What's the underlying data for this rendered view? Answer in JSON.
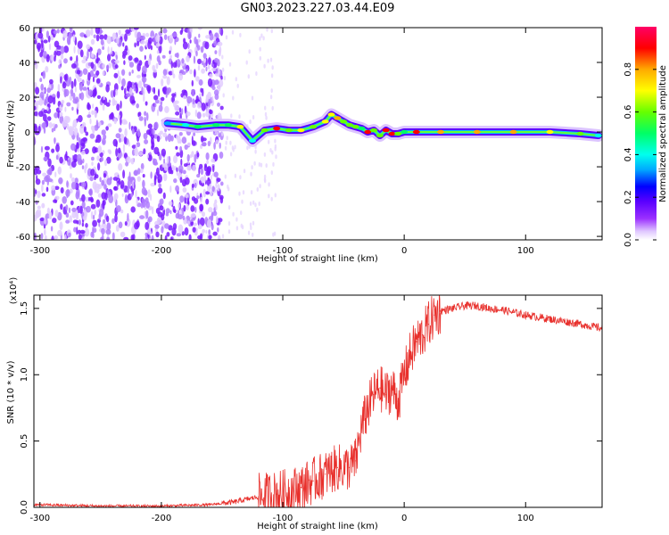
{
  "page_title": "GN03.2023.227.03.44.E09",
  "chart_data": [
    {
      "type": "heatmap",
      "title": "GN03.2023.227.03.44.E09",
      "xlabel": "Height of straight line (km)",
      "ylabel": "Frequency (Hz)",
      "xlim": [
        -305,
        163
      ],
      "ylim": [
        -62,
        60
      ],
      "xticks": [
        -300,
        -200,
        -100,
        0,
        100
      ],
      "yticks": [
        -60,
        -40,
        -20,
        0,
        20,
        40,
        60
      ],
      "grid": false,
      "colorbar": {
        "label": "Normalized spectral amplitude",
        "range": [
          0,
          1
        ],
        "ticks": [
          "0.0",
          "0.2",
          "0.4",
          "0.6",
          "0.8"
        ],
        "colormap": [
          "#ffffff",
          "#e0c8ff",
          "#9b30ff",
          "#5a00ff",
          "#0000ff",
          "#00aaff",
          "#00ffee",
          "#00ff66",
          "#66ff00",
          "#ffff00",
          "#ffaa00",
          "#ff0000",
          "#ff0066"
        ]
      },
      "noise_region_x": [
        -305,
        -150
      ],
      "ridge": {
        "x": [
          -195,
          -180,
          -170,
          -155,
          -145,
          -135,
          -125,
          -115,
          -105,
          -95,
          -85,
          -75,
          -65,
          -60,
          -55,
          -50,
          -45,
          -40,
          -35,
          -30,
          -25,
          -20,
          -15,
          -10,
          -5,
          0,
          10,
          30,
          60,
          90,
          120,
          145,
          160
        ],
        "y": [
          5,
          4,
          3,
          4,
          4,
          3,
          -5,
          1,
          2,
          1,
          1,
          3,
          6,
          10,
          8,
          6,
          4,
          3,
          2,
          0,
          1,
          -2,
          1,
          -1,
          -1,
          0,
          0,
          0,
          0,
          0,
          0,
          -1,
          -2
        ],
        "amplitude": [
          0.3,
          0.35,
          0.5,
          0.5,
          0.45,
          0.7,
          0.4,
          0.6,
          0.9,
          0.6,
          0.65,
          0.6,
          0.7,
          0.7,
          0.8,
          0.55,
          0.6,
          0.55,
          0.5,
          0.9,
          0.6,
          0.6,
          0.9,
          0.85,
          0.55,
          0.5,
          0.9,
          0.8,
          0.8,
          0.75,
          0.7,
          0.6,
          0.4
        ]
      }
    },
    {
      "type": "line",
      "xlabel": "Height of straight line (km)",
      "ylabel": "SNR (10 * v/v)",
      "multiplier": "(x10⁴)",
      "xlim": [
        -305,
        163
      ],
      "ylim": [
        0,
        1.6
      ],
      "xticks": [
        -300,
        -200,
        -100,
        0,
        100
      ],
      "yticks": [
        0.0,
        0.5,
        1.0,
        1.5
      ],
      "grid": false,
      "color": "#e8302c",
      "series": [
        {
          "x": [
            -305,
            -250,
            -200,
            -160,
            -140,
            -120,
            -105,
            -95,
            -85,
            -75,
            -65,
            -55,
            -45,
            -40,
            -35,
            -30,
            -25,
            -20,
            -15,
            -10,
            -5,
            0,
            5,
            10,
            15,
            20,
            25,
            30,
            40,
            50,
            60,
            70,
            80,
            90,
            100,
            120,
            140,
            163
          ],
          "y": [
            0.02,
            0.01,
            0.01,
            0.02,
            0.04,
            0.08,
            0.1,
            0.12,
            0.15,
            0.2,
            0.25,
            0.3,
            0.3,
            0.35,
            0.6,
            0.75,
            0.85,
            0.9,
            0.85,
            0.9,
            0.8,
            1.0,
            1.15,
            1.25,
            1.3,
            1.38,
            1.45,
            1.48,
            1.5,
            1.52,
            1.52,
            1.5,
            1.49,
            1.47,
            1.45,
            1.42,
            1.39,
            1.35
          ]
        }
      ]
    }
  ]
}
